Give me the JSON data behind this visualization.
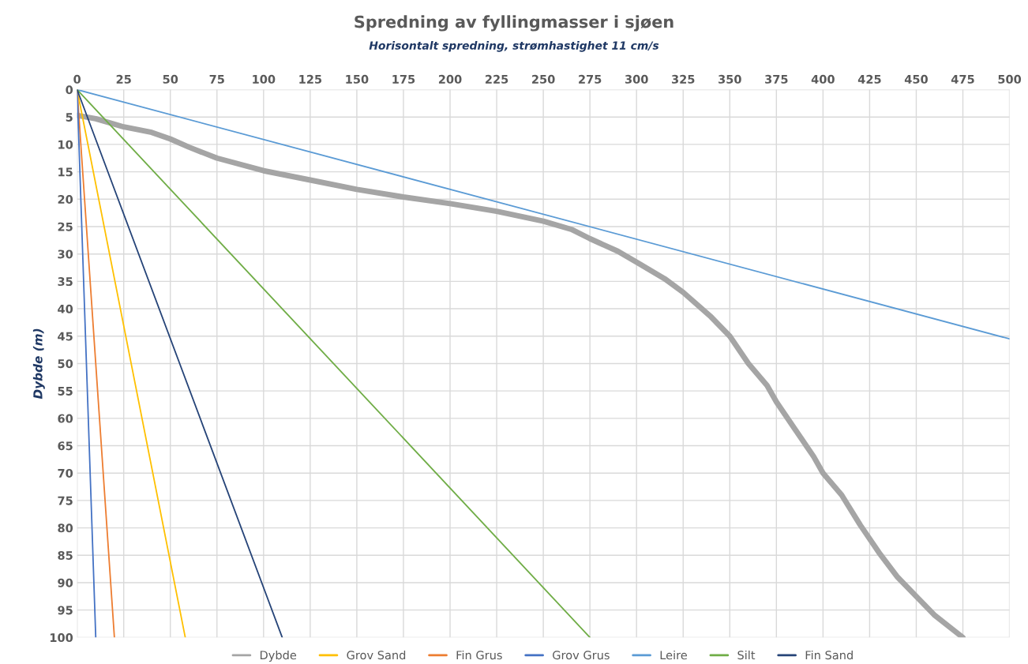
{
  "chart_data": {
    "type": "line",
    "title": "Spredning av fyllingmasser i sjøen",
    "subtitle": "Horisontalt spredning, strømhastighet 11 cm/s",
    "ylabel": "Dybde (m)",
    "xlim": [
      0,
      500
    ],
    "xticks": [
      0,
      25,
      50,
      75,
      100,
      125,
      150,
      175,
      200,
      225,
      250,
      275,
      300,
      325,
      350,
      375,
      400,
      425,
      450,
      475,
      500
    ],
    "ylim": [
      100,
      0
    ],
    "yticks": [
      0,
      5,
      10,
      15,
      20,
      25,
      30,
      35,
      40,
      45,
      50,
      55,
      60,
      65,
      70,
      75,
      80,
      85,
      90,
      95,
      100
    ],
    "grid": true,
    "legend": "bottom",
    "marker": "none",
    "line_style": "solid",
    "series": [
      {
        "name": "Dybde",
        "color": "#a5a5a5",
        "x": [
          0,
          10,
          25,
          40,
          50,
          60,
          75,
          100,
          125,
          150,
          175,
          200,
          225,
          250,
          265,
          275,
          290,
          300,
          315,
          325,
          340,
          350,
          360,
          370,
          375,
          385,
          395,
          400,
          410,
          420,
          430,
          440,
          450,
          460,
          475
        ],
        "values": [
          4.7,
          5.3,
          6.8,
          7.8,
          9,
          10.5,
          12.5,
          14.8,
          16.5,
          18.2,
          19.6,
          20.8,
          22.2,
          24,
          25.5,
          27.2,
          29.5,
          31.5,
          34.5,
          37,
          41.5,
          45,
          50,
          54,
          57,
          62,
          67,
          70,
          74,
          79.5,
          84.5,
          89,
          92.5,
          96,
          100
        ]
      },
      {
        "name": "Grov Sand",
        "color": "#ffc000",
        "x": [
          0,
          58
        ],
        "values": [
          0,
          100
        ]
      },
      {
        "name": "Fin Grus",
        "color": "#ed7d31",
        "x": [
          0,
          20
        ],
        "values": [
          0,
          100
        ]
      },
      {
        "name": "Grov Grus",
        "color": "#4472c4",
        "x": [
          0,
          10
        ],
        "values": [
          0,
          100
        ]
      },
      {
        "name": "Leire",
        "color": "#5b9bd5",
        "x": [
          0,
          500
        ],
        "values": [
          0,
          45.5
        ]
      },
      {
        "name": "Silt",
        "color": "#70ad47",
        "x": [
          0,
          275
        ],
        "values": [
          0,
          100
        ]
      },
      {
        "name": "Fin Sand",
        "color": "#264478",
        "x": [
          0,
          110
        ],
        "values": [
          0,
          100
        ]
      }
    ]
  }
}
